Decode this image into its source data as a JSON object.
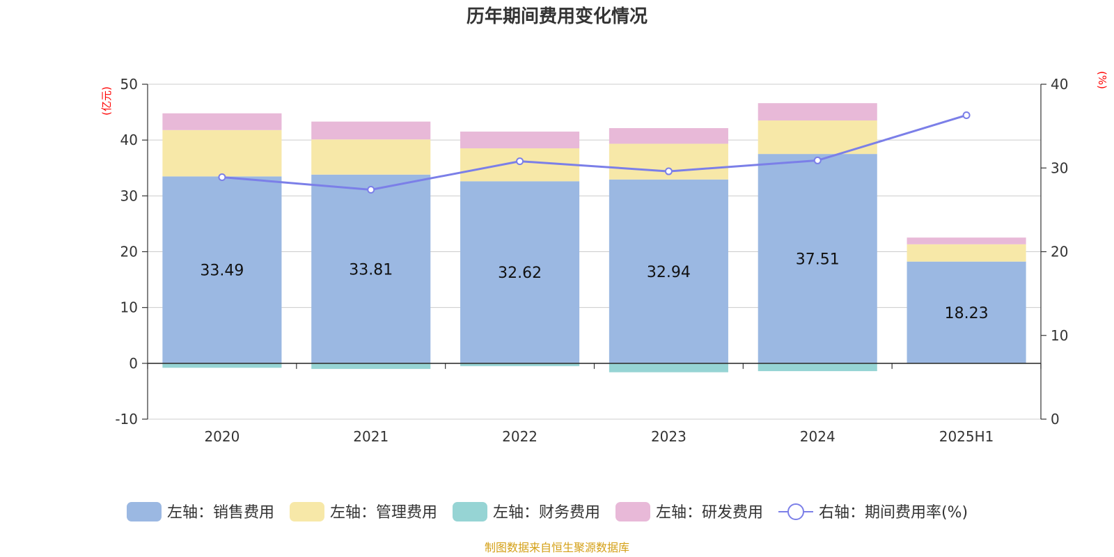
{
  "chart_data": {
    "type": "bar",
    "title": "历年期间费用变化情况",
    "categories": [
      "2020",
      "2021",
      "2022",
      "2023",
      "2024",
      "2025H1"
    ],
    "left_axis": {
      "unit_label": "(亿元)",
      "ylim": [
        -10,
        50
      ],
      "ticks": [
        -10,
        0,
        10,
        20,
        30,
        40,
        50
      ]
    },
    "right_axis": {
      "unit_label": "(%)",
      "ylim": [
        0,
        40
      ],
      "ticks": [
        0,
        10,
        20,
        30,
        40
      ]
    },
    "series": [
      {
        "name": "左轴：销售费用",
        "type": "bar",
        "stack": "total",
        "axis": "left",
        "color": "#9bb8e2",
        "values": [
          33.49,
          33.81,
          32.62,
          32.94,
          37.51,
          18.23
        ],
        "show_labels": true
      },
      {
        "name": "左轴：管理费用",
        "type": "bar",
        "stack": "total",
        "axis": "left",
        "color": "#f7e8a8",
        "values": [
          8.3,
          6.3,
          5.9,
          6.4,
          6.0,
          3.1
        ]
      },
      {
        "name": "左轴：财务费用",
        "type": "bar",
        "stack": "total",
        "axis": "left",
        "color": "#96d4d4",
        "values": [
          -0.8,
          -1.0,
          -0.5,
          -1.6,
          -1.4,
          -0.1
        ]
      },
      {
        "name": "左轴：研发费用",
        "type": "bar",
        "stack": "total",
        "axis": "left",
        "color": "#e8b9d8",
        "values": [
          3.0,
          3.2,
          3.0,
          2.8,
          3.1,
          1.2
        ]
      },
      {
        "name": "右轴：期间费用率(%)",
        "type": "line",
        "axis": "right",
        "color": "#7b7fe8",
        "values": [
          28.9,
          27.4,
          30.8,
          29.6,
          30.9,
          36.3
        ]
      }
    ],
    "grid": true,
    "legend_position": "bottom"
  },
  "source_note": "制图数据来自恒生聚源数据库"
}
